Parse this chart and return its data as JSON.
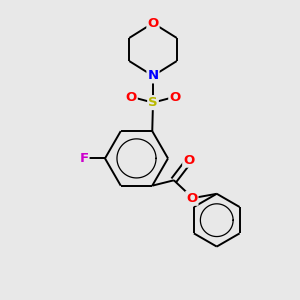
{
  "background_color": "#e8e8e8",
  "bond_color": "#000000",
  "atom_colors": {
    "O": "#ff0000",
    "N": "#0000ff",
    "S": "#b8b800",
    "F": "#cc00cc"
  },
  "lw": 1.4,
  "fs": 9.5
}
